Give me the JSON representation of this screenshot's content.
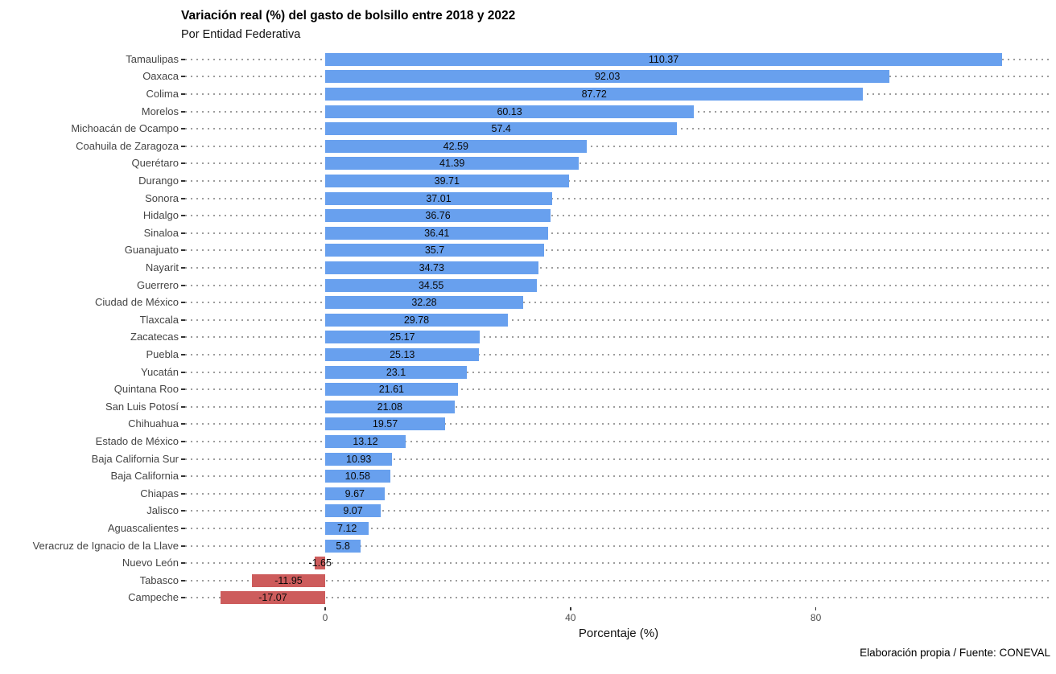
{
  "chart": {
    "title": "Variación real (%) del gasto de bolsillo entre 2018 y 2022",
    "subtitle": "Por Entidad Federativa",
    "xlabel": "Porcentaje (%)",
    "caption": "Elaboración propia / Fuente: CONEVAL"
  },
  "chart_data": {
    "type": "bar",
    "orientation": "horizontal",
    "title": "Variación real (%) del gasto de bolsillo entre 2018 y 2022",
    "subtitle": "Por Entidad Federativa",
    "xlabel": "Porcentaje (%)",
    "ylabel": "",
    "caption": "Elaboración propia / Fuente: CONEVAL",
    "categories": [
      "Tamaulipas",
      "Oaxaca",
      "Colima",
      "Morelos",
      "Michoacán de Ocampo",
      "Coahuila de Zaragoza",
      "Querétaro",
      "Durango",
      "Sonora",
      "Hidalgo",
      "Sinaloa",
      "Guanajuato",
      "Nayarit",
      "Guerrero",
      "Ciudad de México",
      "Tlaxcala",
      "Zacatecas",
      "Puebla",
      "Yucatán",
      "Quintana Roo",
      "San Luis Potosí",
      "Chihuahua",
      "Estado de México",
      "Baja California Sur",
      "Baja California",
      "Chiapas",
      "Jalisco",
      "Aguascalientes",
      "Veracruz de Ignacio de la Llave",
      "Nuevo León",
      "Tabasco",
      "Campeche"
    ],
    "values": [
      110.37,
      92.03,
      87.72,
      60.13,
      57.4,
      42.59,
      41.39,
      39.71,
      37.01,
      36.76,
      36.41,
      35.7,
      34.73,
      34.55,
      32.28,
      29.78,
      25.17,
      25.13,
      23.1,
      21.61,
      21.08,
      19.57,
      13.12,
      10.93,
      10.58,
      9.67,
      9.07,
      7.12,
      5.8,
      -1.65,
      -11.95,
      -17.07
    ],
    "value_labels": [
      "110.37",
      "92.03",
      "87.72",
      "60.13",
      "57.4",
      "42.59",
      "41.39",
      "39.71",
      "37.01",
      "36.76",
      "36.41",
      "35.7",
      "34.73",
      "34.55",
      "32.28",
      "29.78",
      "25.17",
      "25.13",
      "23.1",
      "21.61",
      "21.08",
      "19.57",
      "13.12",
      "10.93",
      "10.58",
      "9.67",
      "9.07",
      "7.12",
      "5.8",
      "-1.65",
      "-11.95",
      "-17.07"
    ],
    "x_ticks": [
      0,
      40,
      80
    ],
    "x_tick_labels": [
      "0",
      "40",
      "80"
    ],
    "xlim": [
      -22.8,
      118.5
    ],
    "grid": "dotted-horizontal-major-y",
    "legend": "none",
    "colors": {
      "positive": "#68A0EE",
      "negative": "#CD5C5C",
      "grid": "#9d9d9d",
      "axis_text": "#4d4d4d",
      "label_text": "#444444"
    }
  }
}
